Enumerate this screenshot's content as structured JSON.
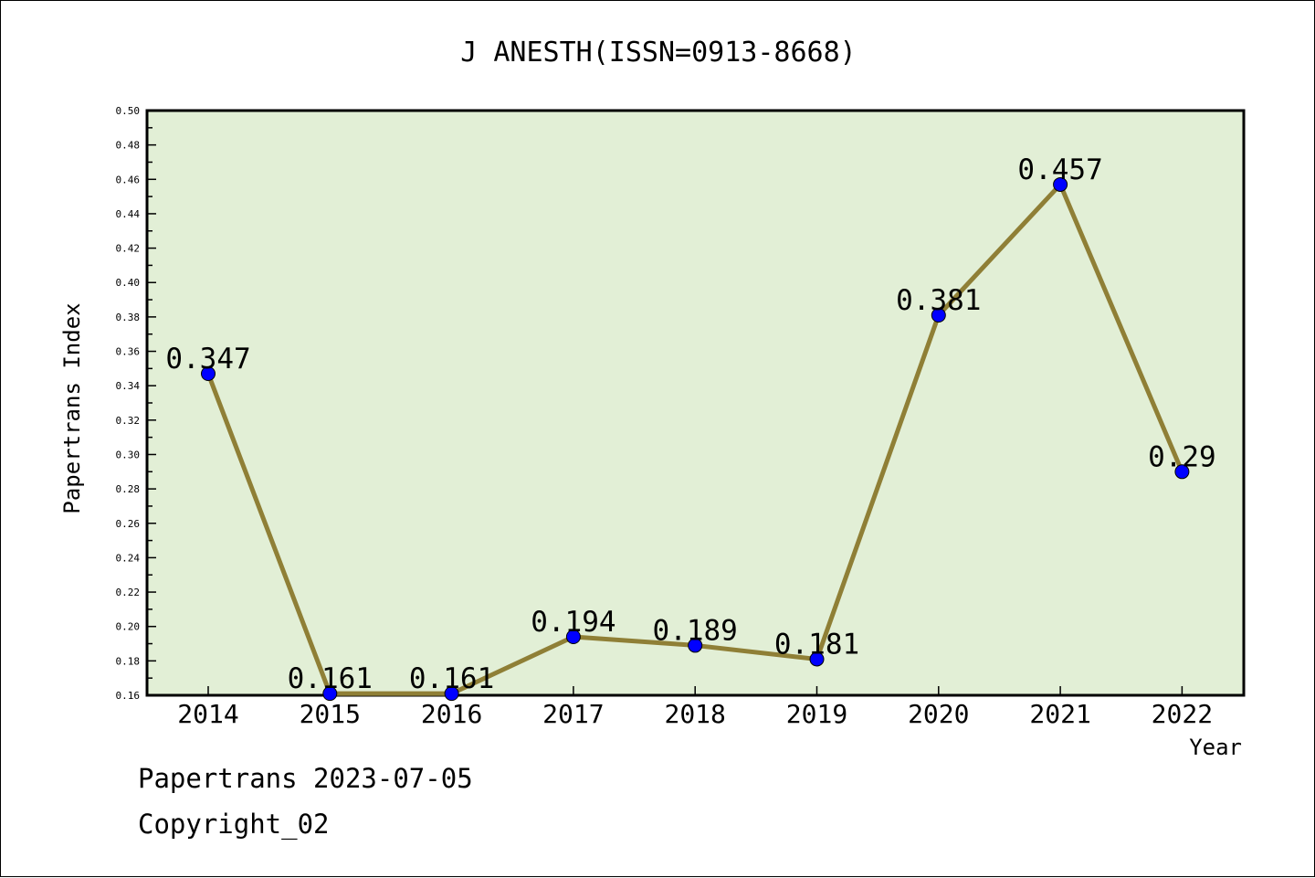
{
  "chart_data": {
    "type": "line",
    "title": "J ANESTH(ISSN=0913-8668)",
    "xlabel": "Year",
    "ylabel": "Papertrans Index",
    "categories": [
      "2014",
      "2015",
      "2016",
      "2017",
      "2018",
      "2019",
      "2020",
      "2021",
      "2022"
    ],
    "series": [
      {
        "values": [
          0.347,
          0.161,
          0.161,
          0.194,
          0.189,
          0.181,
          0.381,
          0.457,
          0.29
        ],
        "labels": [
          "0.347",
          "0.161",
          "0.161",
          "0.194",
          "0.189",
          "0.181",
          "0.381",
          "0.457",
          "0.29"
        ]
      }
    ],
    "ylim": [
      0.16,
      0.5
    ],
    "yticks": [
      "0.16",
      "0.18",
      "0.20",
      "0.22",
      "0.24",
      "0.26",
      "0.28",
      "0.30",
      "0.32",
      "0.34",
      "0.36",
      "0.38",
      "0.40",
      "0.42",
      "0.44",
      "0.46",
      "0.48",
      "0.50"
    ],
    "grid": false,
    "colors": {
      "plot_background": "#e2efd6",
      "line": "#8f7f36",
      "marker": "#0000ff"
    }
  },
  "footer": {
    "source": "Papertrans 2023-07-05",
    "copyright": "Copyright_02"
  }
}
